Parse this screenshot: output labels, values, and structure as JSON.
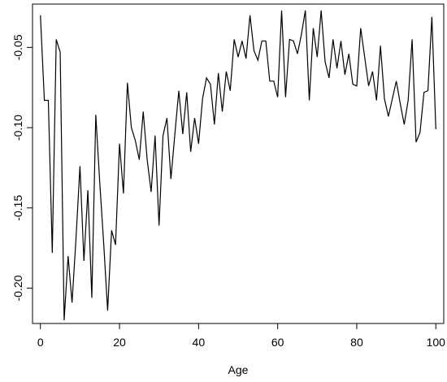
{
  "chart_data": {
    "type": "line",
    "title": "",
    "xlabel": "Age",
    "ylabel": "",
    "xlim": [
      -2,
      102
    ],
    "ylim": [
      -0.222,
      -0.023
    ],
    "xticks": [
      0,
      20,
      40,
      60,
      80,
      100
    ],
    "yticks": [
      -0.2,
      -0.15,
      -0.1,
      -0.05
    ],
    "xtick_labels": [
      "0",
      "20",
      "40",
      "60",
      "80",
      "100"
    ],
    "ytick_labels": [
      "-0.20",
      "-0.15",
      "-0.10",
      "-0.05"
    ],
    "grid": false,
    "legend": "none",
    "line_color": "#000000",
    "series": [
      {
        "x": [
          0,
          1,
          2,
          3,
          4,
          5,
          6,
          7,
          8,
          9,
          10,
          11,
          12,
          13,
          14,
          15,
          16,
          17,
          18,
          19,
          20,
          21,
          22,
          23,
          24,
          25,
          26,
          27,
          28,
          29,
          30,
          31,
          32,
          33,
          34,
          35,
          36,
          37,
          38,
          39,
          40,
          41,
          42,
          43,
          44,
          45,
          46,
          47,
          48,
          49,
          50,
          51,
          52,
          53,
          54,
          55,
          56,
          57,
          58,
          59,
          60,
          61,
          62,
          63,
          64,
          65,
          66,
          67,
          68,
          69,
          70,
          71,
          72,
          73,
          74,
          75,
          76,
          77,
          78,
          79,
          80,
          81,
          82,
          83,
          84,
          85,
          86,
          87,
          88,
          89,
          90,
          91,
          92,
          93,
          94,
          95,
          96,
          97,
          98,
          99,
          100
        ],
        "values": [
          -0.03,
          -0.083,
          -0.083,
          -0.178,
          -0.045,
          -0.053,
          -0.22,
          -0.18,
          -0.209,
          -0.169,
          -0.124,
          -0.183,
          -0.139,
          -0.206,
          -0.092,
          -0.134,
          -0.172,
          -0.214,
          -0.164,
          -0.173,
          -0.11,
          -0.141,
          -0.072,
          -0.1,
          -0.108,
          -0.12,
          -0.09,
          -0.12,
          -0.14,
          -0.105,
          -0.161,
          -0.105,
          -0.094,
          -0.132,
          -0.104,
          -0.077,
          -0.104,
          -0.078,
          -0.115,
          -0.094,
          -0.11,
          -0.082,
          -0.069,
          -0.073,
          -0.098,
          -0.066,
          -0.09,
          -0.065,
          -0.077,
          -0.045,
          -0.056,
          -0.046,
          -0.057,
          -0.03,
          -0.052,
          -0.058,
          -0.046,
          -0.046,
          -0.071,
          -0.071,
          -0.081,
          -0.027,
          -0.081,
          -0.045,
          -0.046,
          -0.054,
          -0.042,
          -0.027,
          -0.083,
          -0.038,
          -0.056,
          -0.027,
          -0.059,
          -0.069,
          -0.045,
          -0.063,
          -0.046,
          -0.067,
          -0.054,
          -0.073,
          -0.074,
          -0.038,
          -0.056,
          -0.074,
          -0.065,
          -0.083,
          -0.049,
          -0.082,
          -0.093,
          -0.082,
          -0.071,
          -0.085,
          -0.098,
          -0.083,
          -0.045,
          -0.109,
          -0.103,
          -0.078,
          -0.077,
          -0.031,
          -0.101
        ]
      }
    ]
  }
}
